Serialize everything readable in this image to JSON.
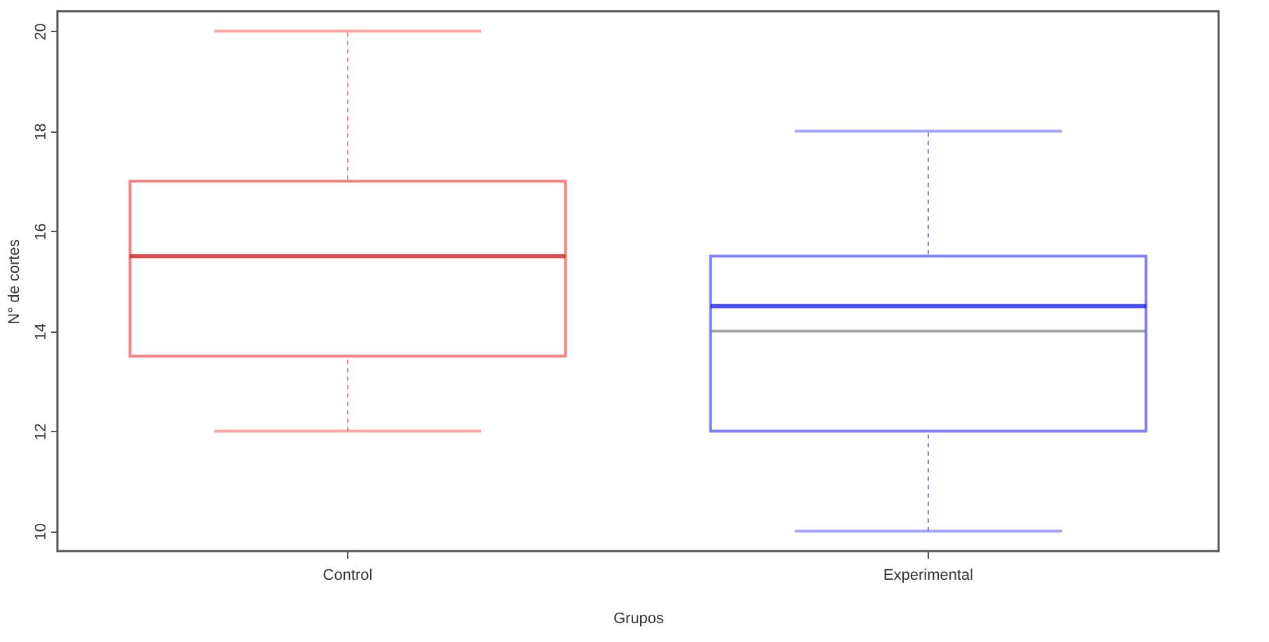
{
  "chart_data": {
    "type": "box",
    "xlabel": "Grupos",
    "ylabel": "N° de cortes",
    "categories": [
      "Control",
      "Experimental"
    ],
    "colors": [
      "#ff7f7f",
      "#7f7fff"
    ],
    "boxes": [
      {
        "low": 12,
        "q1": 13.5,
        "median": 15.5,
        "q3": 17,
        "high": 20
      },
      {
        "low": 10,
        "q1": 12,
        "median": 14.5,
        "q3": 15.5,
        "high": 18,
        "mean": 14
      }
    ],
    "ylim": [
      9.6,
      20.4
    ],
    "yticks": [
      10,
      12,
      14,
      16,
      18,
      20
    ],
    "grid": false
  }
}
